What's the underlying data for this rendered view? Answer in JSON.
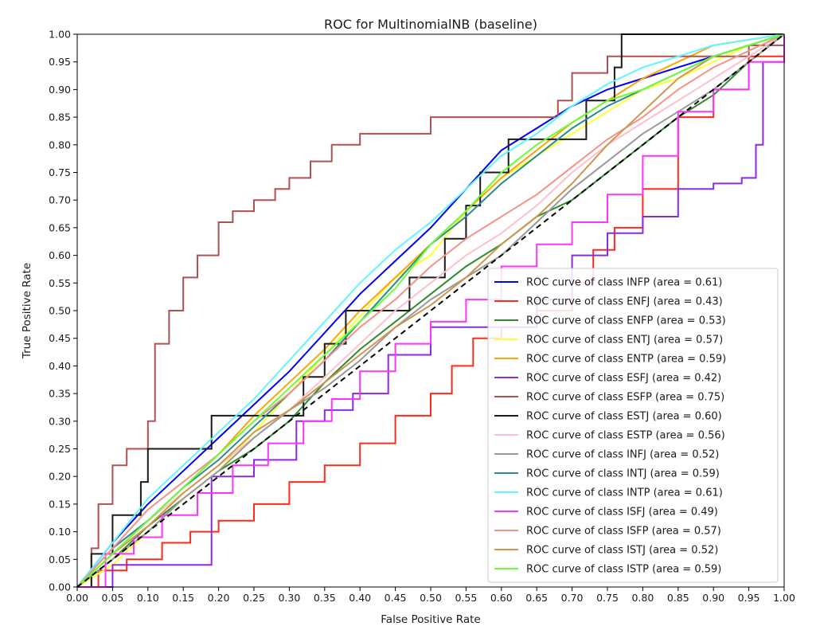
{
  "chart_data": {
    "type": "line",
    "title": "ROC for MultinomialNB (baseline)",
    "xlabel": "False Positive Rate",
    "ylabel": "True Positive Rate",
    "xlim": [
      0,
      1
    ],
    "ylim": [
      0,
      1
    ],
    "xticks": [
      "0.00",
      "0.05",
      "0.10",
      "0.15",
      "0.20",
      "0.25",
      "0.30",
      "0.35",
      "0.40",
      "0.45",
      "0.50",
      "0.55",
      "0.60",
      "0.65",
      "0.70",
      "0.75",
      "0.80",
      "0.85",
      "0.90",
      "0.95",
      "1.00"
    ],
    "yticks": [
      "0.00",
      "0.05",
      "0.10",
      "0.15",
      "0.20",
      "0.25",
      "0.30",
      "0.35",
      "0.40",
      "0.45",
      "0.50",
      "0.55",
      "0.60",
      "0.65",
      "0.70",
      "0.75",
      "0.80",
      "0.85",
      "0.90",
      "0.95",
      "1.00"
    ],
    "grid": false,
    "legend_position": "lower-right",
    "diagonal": {
      "x": [
        0,
        1
      ],
      "y": [
        0,
        1
      ],
      "color": "#000000",
      "style": "dashed"
    },
    "series": [
      {
        "name": "ROC curve of class INFP (area = 0.61)",
        "color": "#0000ff",
        "step": false,
        "x": [
          0,
          0.05,
          0.1,
          0.15,
          0.2,
          0.25,
          0.3,
          0.35,
          0.4,
          0.45,
          0.5,
          0.55,
          0.6,
          0.65,
          0.7,
          0.75,
          0.8,
          0.85,
          0.9,
          0.95,
          1
        ],
        "y": [
          0,
          0.08,
          0.15,
          0.21,
          0.27,
          0.33,
          0.39,
          0.46,
          0.53,
          0.59,
          0.65,
          0.72,
          0.79,
          0.83,
          0.87,
          0.9,
          0.92,
          0.94,
          0.96,
          0.98,
          1
        ]
      },
      {
        "name": "ROC curve of class ENFJ (area = 0.43)",
        "color": "#ff2a1a",
        "step": true,
        "x": [
          0,
          0.03,
          0.07,
          0.12,
          0.16,
          0.2,
          0.25,
          0.3,
          0.35,
          0.4,
          0.45,
          0.5,
          0.53,
          0.56,
          0.6,
          0.65,
          0.7,
          0.73,
          0.76,
          0.8,
          0.85,
          0.9,
          0.95,
          1
        ],
        "y": [
          0,
          0.03,
          0.05,
          0.08,
          0.1,
          0.12,
          0.15,
          0.19,
          0.22,
          0.26,
          0.31,
          0.35,
          0.4,
          0.45,
          0.47,
          0.5,
          0.55,
          0.61,
          0.65,
          0.72,
          0.85,
          0.9,
          0.96,
          0.98
        ]
      },
      {
        "name": "ROC curve of class ENFP (area = 0.53)",
        "color": "#2e8b2e",
        "step": false,
        "x": [
          0,
          0.05,
          0.1,
          0.15,
          0.2,
          0.25,
          0.3,
          0.35,
          0.4,
          0.45,
          0.5,
          0.55,
          0.6,
          0.65,
          0.7,
          0.75,
          0.8,
          0.85,
          0.9,
          0.95,
          1
        ],
        "y": [
          0,
          0.05,
          0.11,
          0.16,
          0.21,
          0.25,
          0.3,
          0.37,
          0.43,
          0.48,
          0.53,
          0.58,
          0.62,
          0.67,
          0.7,
          0.75,
          0.8,
          0.85,
          0.89,
          0.95,
          1
        ]
      },
      {
        "name": "ROC curve of class ENTJ (area = 0.57)",
        "color": "#ffff33",
        "step": false,
        "x": [
          0,
          0.05,
          0.1,
          0.15,
          0.2,
          0.25,
          0.3,
          0.35,
          0.4,
          0.45,
          0.5,
          0.55,
          0.6,
          0.65,
          0.7,
          0.75,
          0.8,
          0.85,
          0.9,
          0.95,
          1
        ],
        "y": [
          0,
          0.04,
          0.1,
          0.16,
          0.21,
          0.28,
          0.35,
          0.42,
          0.49,
          0.56,
          0.6,
          0.68,
          0.74,
          0.78,
          0.82,
          0.86,
          0.9,
          0.92,
          0.95,
          0.98,
          1
        ]
      },
      {
        "name": "ROC curve of class ENTP (area = 0.59)",
        "color": "#ffa500",
        "step": false,
        "x": [
          0,
          0.05,
          0.1,
          0.15,
          0.2,
          0.25,
          0.3,
          0.35,
          0.4,
          0.45,
          0.5,
          0.55,
          0.6,
          0.65,
          0.7,
          0.75,
          0.8,
          0.85,
          0.9,
          0.95,
          1
        ],
        "y": [
          0,
          0.06,
          0.12,
          0.18,
          0.24,
          0.31,
          0.37,
          0.43,
          0.5,
          0.56,
          0.62,
          0.68,
          0.74,
          0.79,
          0.84,
          0.88,
          0.92,
          0.95,
          0.98,
          0.99,
          1
        ]
      },
      {
        "name": "ROC curve of class ESFJ (area = 0.42)",
        "color": "#8b2be2",
        "step": true,
        "x": [
          0,
          0.05,
          0.1,
          0.16,
          0.19,
          0.24,
          0.25,
          0.31,
          0.35,
          0.39,
          0.44,
          0.5,
          0.55,
          0.6,
          0.65,
          0.7,
          0.75,
          0.8,
          0.85,
          0.9,
          0.94,
          0.96,
          0.97,
          1
        ],
        "y": [
          0,
          0.04,
          0.04,
          0.04,
          0.2,
          0.2,
          0.23,
          0.3,
          0.32,
          0.35,
          0.42,
          0.47,
          0.47,
          0.47,
          0.52,
          0.6,
          0.64,
          0.67,
          0.72,
          0.73,
          0.74,
          0.8,
          0.95,
          1
        ]
      },
      {
        "name": "ROC curve of class ESFP (area = 0.75)",
        "color": "#b05050",
        "step": true,
        "x": [
          0,
          0.02,
          0.03,
          0.05,
          0.07,
          0.1,
          0.11,
          0.13,
          0.15,
          0.17,
          0.2,
          0.22,
          0.25,
          0.28,
          0.3,
          0.33,
          0.36,
          0.4,
          0.5,
          0.6,
          0.68,
          0.7,
          0.75,
          0.85,
          0.95,
          1
        ],
        "y": [
          0,
          0.07,
          0.15,
          0.22,
          0.25,
          0.3,
          0.44,
          0.5,
          0.56,
          0.6,
          0.66,
          0.68,
          0.7,
          0.72,
          0.74,
          0.77,
          0.8,
          0.82,
          0.85,
          0.85,
          0.88,
          0.93,
          0.96,
          0.96,
          0.98,
          1
        ]
      },
      {
        "name": "ROC curve of class ESTJ (area = 0.60)",
        "color": "#1a1a1a",
        "step": true,
        "x": [
          0,
          0.02,
          0.05,
          0.09,
          0.1,
          0.15,
          0.19,
          0.25,
          0.32,
          0.35,
          0.38,
          0.42,
          0.47,
          0.52,
          0.55,
          0.57,
          0.61,
          0.7,
          0.72,
          0.76,
          0.77,
          0.85,
          1
        ],
        "y": [
          0,
          0.06,
          0.13,
          0.19,
          0.25,
          0.25,
          0.31,
          0.31,
          0.38,
          0.44,
          0.5,
          0.5,
          0.56,
          0.63,
          0.69,
          0.75,
          0.81,
          0.81,
          0.88,
          0.94,
          1,
          1,
          1
        ]
      },
      {
        "name": "ROC curve of class ESTP (area = 0.56)",
        "color": "#ffc0cb",
        "step": false,
        "x": [
          0,
          0.05,
          0.1,
          0.15,
          0.2,
          0.25,
          0.3,
          0.35,
          0.4,
          0.45,
          0.5,
          0.55,
          0.6,
          0.65,
          0.7,
          0.75,
          0.8,
          0.85,
          0.9,
          0.95,
          1
        ],
        "y": [
          0,
          0.07,
          0.12,
          0.17,
          0.22,
          0.27,
          0.32,
          0.38,
          0.44,
          0.5,
          0.55,
          0.6,
          0.64,
          0.69,
          0.75,
          0.8,
          0.84,
          0.88,
          0.92,
          0.96,
          1
        ]
      },
      {
        "name": "ROC curve of class INFJ (area = 0.52)",
        "color": "#999999",
        "step": false,
        "x": [
          0,
          0.05,
          0.1,
          0.15,
          0.2,
          0.25,
          0.3,
          0.35,
          0.4,
          0.45,
          0.5,
          0.55,
          0.6,
          0.65,
          0.7,
          0.75,
          0.8,
          0.85,
          0.9,
          0.95,
          1
        ],
        "y": [
          0,
          0.05,
          0.1,
          0.16,
          0.21,
          0.27,
          0.32,
          0.36,
          0.41,
          0.47,
          0.52,
          0.56,
          0.6,
          0.66,
          0.72,
          0.77,
          0.82,
          0.86,
          0.9,
          0.95,
          1
        ]
      },
      {
        "name": "ROC curve of class INTJ (area = 0.59)",
        "color": "#2e8b8b",
        "step": false,
        "x": [
          0,
          0.05,
          0.1,
          0.15,
          0.2,
          0.25,
          0.3,
          0.35,
          0.4,
          0.45,
          0.5,
          0.55,
          0.6,
          0.65,
          0.7,
          0.75,
          0.8,
          0.85,
          0.9,
          0.95,
          1
        ],
        "y": [
          0,
          0.07,
          0.12,
          0.18,
          0.23,
          0.29,
          0.35,
          0.41,
          0.48,
          0.55,
          0.62,
          0.67,
          0.73,
          0.78,
          0.83,
          0.87,
          0.9,
          0.93,
          0.96,
          0.98,
          1
        ]
      },
      {
        "name": "ROC curve of class INTP (area = 0.61)",
        "color": "#5ef7ff",
        "step": false,
        "x": [
          0,
          0.05,
          0.1,
          0.15,
          0.2,
          0.25,
          0.3,
          0.35,
          0.4,
          0.45,
          0.5,
          0.55,
          0.6,
          0.65,
          0.7,
          0.75,
          0.8,
          0.85,
          0.9,
          0.95,
          1
        ],
        "y": [
          0,
          0.08,
          0.16,
          0.22,
          0.28,
          0.34,
          0.41,
          0.48,
          0.55,
          0.61,
          0.66,
          0.72,
          0.78,
          0.82,
          0.87,
          0.91,
          0.94,
          0.96,
          0.98,
          0.99,
          1
        ]
      },
      {
        "name": "ROC curve of class ISFJ (area = 0.49)",
        "color": "#ff33ff",
        "step": true,
        "x": [
          0,
          0.04,
          0.08,
          0.12,
          0.17,
          0.22,
          0.27,
          0.32,
          0.36,
          0.4,
          0.45,
          0.5,
          0.55,
          0.6,
          0.65,
          0.7,
          0.75,
          0.8,
          0.85,
          0.9,
          0.95,
          1
        ],
        "y": [
          0,
          0.06,
          0.09,
          0.13,
          0.17,
          0.22,
          0.26,
          0.3,
          0.34,
          0.39,
          0.44,
          0.48,
          0.52,
          0.58,
          0.62,
          0.66,
          0.71,
          0.78,
          0.86,
          0.9,
          0.95,
          1
        ]
      },
      {
        "name": "ROC curve of class ISFP (area = 0.57)",
        "color": "#f4928a",
        "step": false,
        "x": [
          0,
          0.05,
          0.1,
          0.15,
          0.2,
          0.25,
          0.3,
          0.35,
          0.4,
          0.45,
          0.5,
          0.55,
          0.6,
          0.65,
          0.7,
          0.75,
          0.8,
          0.85,
          0.9,
          0.95,
          1
        ],
        "y": [
          0,
          0.07,
          0.14,
          0.19,
          0.24,
          0.3,
          0.35,
          0.41,
          0.47,
          0.52,
          0.58,
          0.63,
          0.67,
          0.71,
          0.76,
          0.81,
          0.85,
          0.9,
          0.94,
          0.97,
          1
        ]
      },
      {
        "name": "ROC curve of class ISTJ (area = 0.52)",
        "color": "#d2944a",
        "step": false,
        "x": [
          0,
          0.05,
          0.1,
          0.15,
          0.2,
          0.25,
          0.3,
          0.35,
          0.4,
          0.45,
          0.5,
          0.55,
          0.6,
          0.65,
          0.7,
          0.75,
          0.8,
          0.85,
          0.9,
          0.95,
          1
        ],
        "y": [
          0,
          0.06,
          0.11,
          0.17,
          0.22,
          0.28,
          0.32,
          0.37,
          0.42,
          0.47,
          0.51,
          0.56,
          0.62,
          0.67,
          0.73,
          0.8,
          0.86,
          0.92,
          0.96,
          0.98,
          1
        ]
      },
      {
        "name": "ROC curve of class ISTP (area = 0.59)",
        "color": "#66ff33",
        "step": false,
        "x": [
          0,
          0.05,
          0.1,
          0.15,
          0.2,
          0.25,
          0.3,
          0.35,
          0.4,
          0.45,
          0.5,
          0.55,
          0.6,
          0.65,
          0.7,
          0.75,
          0.8,
          0.85,
          0.9,
          0.95,
          1
        ],
        "y": [
          0,
          0.06,
          0.12,
          0.18,
          0.24,
          0.3,
          0.36,
          0.42,
          0.48,
          0.54,
          0.62,
          0.68,
          0.75,
          0.8,
          0.84,
          0.88,
          0.9,
          0.93,
          0.96,
          0.98,
          1
        ]
      }
    ]
  }
}
